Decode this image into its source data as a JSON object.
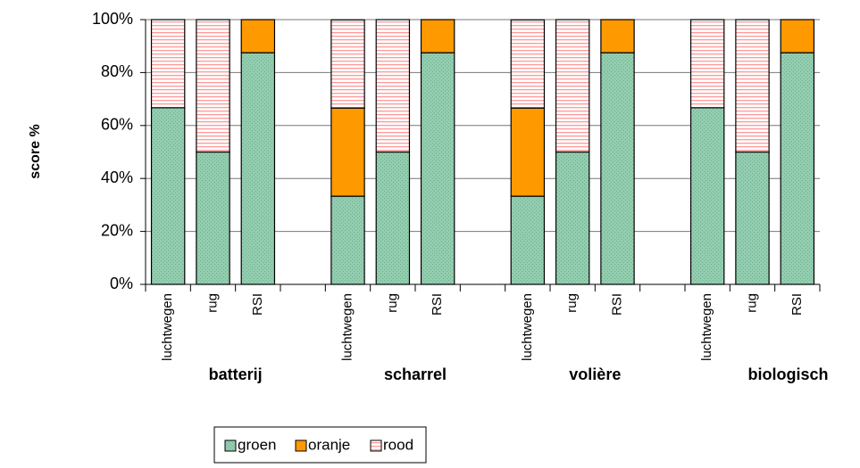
{
  "chart_data": {
    "type": "stacked_bar",
    "y_label": "score %",
    "categories": [
      "luchtwegen",
      "rug",
      "RSI",
      null,
      "luchtwegen",
      "rug",
      "RSI",
      null,
      "luchtwegen",
      "rug",
      "RSI",
      null,
      "luchtwegen",
      "rug",
      "RSI"
    ],
    "groups": [
      "batterij",
      "scharrel",
      "volière",
      "biologisch"
    ],
    "series": [
      {
        "name": "groen",
        "color": "#93cdb0",
        "values": [
          66.7,
          50,
          87.5,
          null,
          33.3,
          50,
          87.5,
          null,
          33.3,
          50,
          87.5,
          null,
          66.7,
          50,
          87.5
        ]
      },
      {
        "name": "oranje",
        "color": "#ff9900",
        "values": [
          0,
          0,
          12.5,
          null,
          33.3,
          0,
          12.5,
          null,
          33.3,
          0,
          12.5,
          null,
          0,
          0,
          12.5
        ]
      },
      {
        "name": "rood",
        "color": "#ff9999",
        "values": [
          33.3,
          50,
          0,
          null,
          33.3,
          50,
          0,
          null,
          33.3,
          50,
          0,
          null,
          33.3,
          50,
          0
        ]
      }
    ],
    "ylim": [
      0,
      100
    ],
    "yticks": [
      {
        "value": 0,
        "label": "0%"
      },
      {
        "value": 20,
        "label": "20%"
      },
      {
        "value": 40,
        "label": "40%"
      },
      {
        "value": 60,
        "label": "60%"
      },
      {
        "value": 80,
        "label": "80%"
      },
      {
        "value": 100,
        "label": "100%"
      }
    ],
    "grid": true,
    "legend": "bottom"
  }
}
